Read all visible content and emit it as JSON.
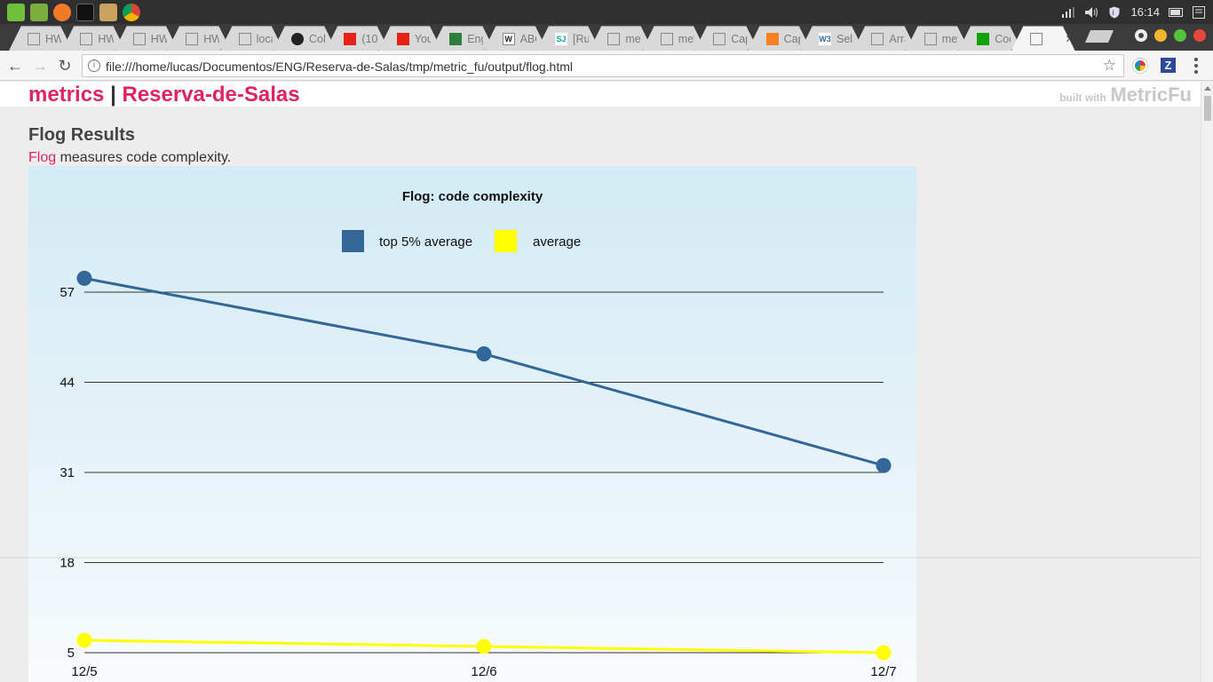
{
  "taskbar": {
    "clock": "16:14",
    "launchers": [
      "mint-menu-icon",
      "desktop-icon",
      "firefox-icon",
      "terminal-icon",
      "folder-icon",
      "chrome-icon"
    ]
  },
  "tabs": [
    {
      "label": "HW",
      "favicon": "page-icon"
    },
    {
      "label": "HW",
      "favicon": "page-icon"
    },
    {
      "label": "HW",
      "favicon": "page-icon"
    },
    {
      "label": "HW",
      "favicon": "page-icon"
    },
    {
      "label": "loca",
      "favicon": "page-icon"
    },
    {
      "label": "Cob",
      "favicon": "github-icon"
    },
    {
      "label": "(10",
      "favicon": "youtube-icon"
    },
    {
      "label": "You",
      "favicon": "youtube-icon"
    },
    {
      "label": "Eng",
      "favicon": "flag-icon"
    },
    {
      "label": "ABC",
      "favicon": "wikipedia-icon"
    },
    {
      "label": "[Rul",
      "favicon": "sj-icon"
    },
    {
      "label": "met",
      "favicon": "page-icon"
    },
    {
      "label": "met",
      "favicon": "page-icon"
    },
    {
      "label": "Cap",
      "favicon": "page-icon"
    },
    {
      "label": "Cap",
      "favicon": "stackoverflow-icon"
    },
    {
      "label": "Sele",
      "favicon": "w3schools-icon"
    },
    {
      "label": "Arra",
      "favicon": "page-icon"
    },
    {
      "label": "met",
      "favicon": "page-icon"
    },
    {
      "label": "Coc",
      "favicon": "green-square-icon"
    },
    {
      "label": "",
      "favicon": "page-icon",
      "active": true
    }
  ],
  "toolbar": {
    "url": "file:///home/lucas/Documentos/ENG/Reserva-de-Salas/tmp/metric_fu/output/flog.html"
  },
  "site": {
    "brand_metrics": "metrics",
    "brand_sep": "|",
    "brand_project": "Reserva-de-Salas",
    "built_with": "built with",
    "built_name": "MetricFu"
  },
  "content": {
    "heading": "Flog Results",
    "desc_link": "Flog",
    "desc_rest": " measures code complexity."
  },
  "chart_data": {
    "type": "line",
    "title": "Flog: code complexity",
    "categories": [
      "12/5",
      "12/6",
      "12/7"
    ],
    "y_ticks": [
      5,
      18,
      31,
      44,
      57
    ],
    "ylim": [
      5,
      57
    ],
    "grid": true,
    "legend_position": "top-center",
    "series": [
      {
        "name": "top 5% average",
        "color": "#336699",
        "values": [
          59.0,
          48.1,
          32.0
        ]
      },
      {
        "name": "average",
        "color": "#ffff00",
        "values": [
          6.8,
          5.9,
          5.0
        ]
      }
    ]
  }
}
